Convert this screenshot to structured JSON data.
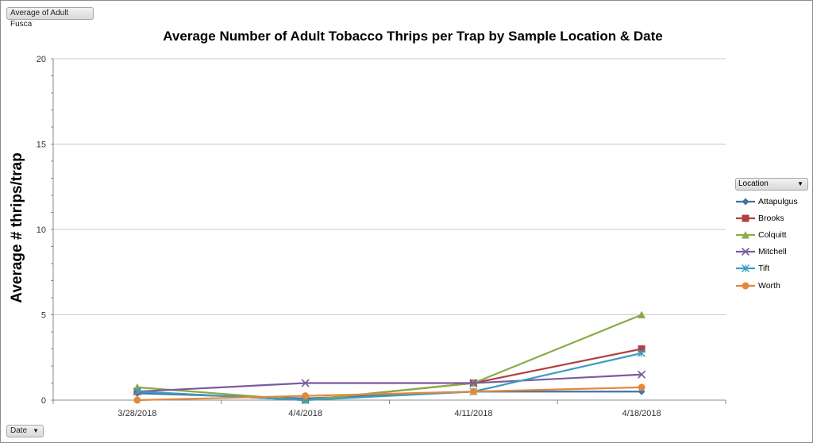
{
  "field_button": {
    "label": "Average of Adult Fusca"
  },
  "axis_field_button": {
    "label": "Date",
    "dropdown_icon": "chevron-down-icon"
  },
  "legend_field_button": {
    "label": "Location",
    "dropdown_icon": "chevron-down-icon"
  },
  "chart_data": {
    "type": "line",
    "title": "Average Number of Adult Tobacco Thrips per Trap by Sample Location & Date",
    "xlabel": "",
    "ylabel": "Average # thrips/trap",
    "categories": [
      "3/28/2018",
      "4/4/2018",
      "4/11/2018",
      "4/18/2018"
    ],
    "ylim": [
      0,
      20
    ],
    "yticks": [
      0,
      5,
      10,
      15,
      20
    ],
    "grid": true,
    "legend_position": "right",
    "series": [
      {
        "name": "Attapulgus",
        "values": [
          0.4,
          0.1,
          0.5,
          0.5
        ],
        "color": "#4472a8",
        "marker": "diamond"
      },
      {
        "name": "Brooks",
        "values": [
          0.5,
          0.0,
          1.0,
          3.0
        ],
        "color": "#b0413e",
        "marker": "square"
      },
      {
        "name": "Colquitt",
        "values": [
          0.75,
          0.0,
          1.0,
          5.0
        ],
        "color": "#8aab46",
        "marker": "triangle"
      },
      {
        "name": "Mitchell",
        "values": [
          0.5,
          1.0,
          1.0,
          1.5
        ],
        "color": "#7a5b9b",
        "marker": "x"
      },
      {
        "name": "Tift",
        "values": [
          0.5,
          0.0,
          0.5,
          2.75
        ],
        "color": "#3c9cc4",
        "marker": "star"
      },
      {
        "name": "Worth",
        "values": [
          0.0,
          0.25,
          0.5,
          0.75
        ],
        "color": "#e08a3a",
        "marker": "circle"
      }
    ]
  }
}
